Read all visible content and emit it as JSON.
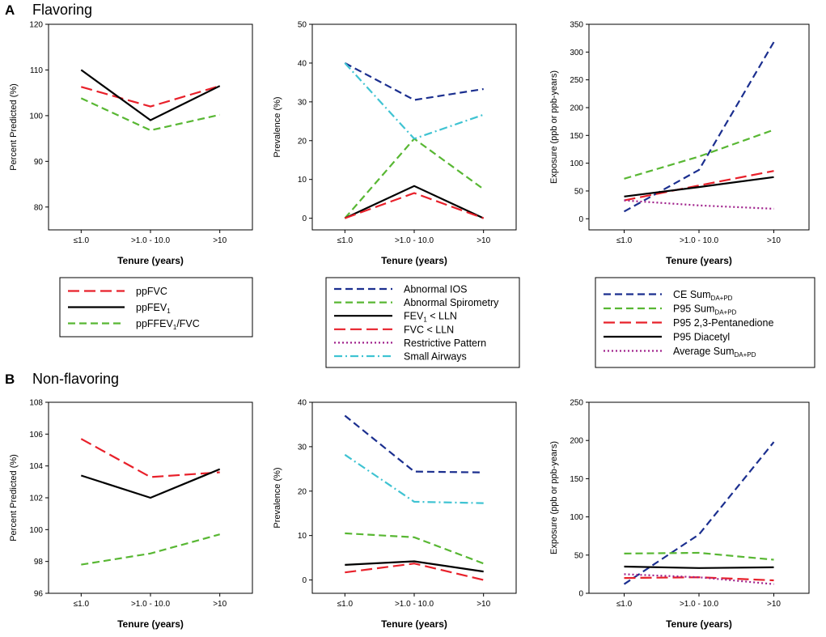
{
  "sections": {
    "A": {
      "letter": "A",
      "title": "Flavoring"
    },
    "B": {
      "letter": "B",
      "title": "Non-flavoring"
    }
  },
  "chart_data": [
    {
      "id": "A1",
      "type": "line",
      "categories": [
        "≤1.0",
        ">1.0 - 10.0",
        ">10"
      ],
      "xlabel": "Tenure (years)",
      "ylabel": "Percent Predicted (%)",
      "ylim": [
        75,
        120
      ],
      "yticks": [
        80,
        90,
        100,
        110,
        120
      ],
      "series": [
        {
          "key": "ppFVC",
          "values": [
            106.3,
            102.0,
            106.5
          ]
        },
        {
          "key": "ppFEV1",
          "values": [
            110.0,
            99.0,
            106.5
          ]
        },
        {
          "key": "ppFEV1FVC",
          "values": [
            103.8,
            96.8,
            100.2
          ]
        }
      ]
    },
    {
      "id": "A2",
      "type": "line",
      "categories": [
        "≤1.0",
        ">1.0 - 10.0",
        ">10"
      ],
      "xlabel": "Tenure (years)",
      "ylabel": "Prevalence (%)",
      "ylim": [
        -3,
        50
      ],
      "yticks": [
        0,
        10,
        20,
        30,
        40,
        50
      ],
      "series": [
        {
          "key": "abnIOS",
          "values": [
            40.0,
            30.5,
            33.3
          ]
        },
        {
          "key": "abnSpiro",
          "values": [
            0.0,
            20.5,
            7.5
          ]
        },
        {
          "key": "fev1lln",
          "values": [
            0.0,
            8.3,
            0.0
          ]
        },
        {
          "key": "fvclln",
          "values": [
            0.0,
            6.5,
            0.0
          ]
        },
        {
          "key": "smallAirways",
          "values": [
            40.0,
            20.5,
            26.7
          ]
        }
      ]
    },
    {
      "id": "A3",
      "type": "line",
      "categories": [
        "≤1.0",
        ">1.0 - 10.0",
        ">10"
      ],
      "xlabel": "Tenure (years)",
      "ylabel": "Exposure (ppb or ppb-years)",
      "ylim": [
        -20,
        350
      ],
      "yticks": [
        0,
        50,
        100,
        150,
        200,
        250,
        300,
        350
      ],
      "series": [
        {
          "key": "ceSum",
          "values": [
            13,
            88,
            318
          ]
        },
        {
          "key": "p95Sum",
          "values": [
            72,
            112,
            160
          ]
        },
        {
          "key": "p95Pent",
          "values": [
            33,
            60,
            86
          ]
        },
        {
          "key": "p95Dia",
          "values": [
            40,
            57,
            75
          ]
        },
        {
          "key": "avgSum",
          "values": [
            33,
            24,
            18
          ]
        }
      ]
    },
    {
      "id": "B1",
      "type": "line",
      "categories": [
        "≤1.0",
        ">1.0 - 10.0",
        ">10"
      ],
      "xlabel": "Tenure (years)",
      "ylabel": "Percent Predicted (%)",
      "ylim": [
        96,
        108
      ],
      "yticks": [
        96,
        98,
        100,
        102,
        104,
        106,
        108
      ],
      "series": [
        {
          "key": "ppFVC",
          "values": [
            105.7,
            103.3,
            103.6
          ]
        },
        {
          "key": "ppFEV1",
          "values": [
            103.4,
            102.0,
            103.8
          ]
        },
        {
          "key": "ppFEV1FVC",
          "values": [
            97.8,
            98.5,
            99.7
          ]
        }
      ]
    },
    {
      "id": "B2",
      "type": "line",
      "categories": [
        "≤1.0",
        ">1.0 - 10.0",
        ">10"
      ],
      "xlabel": "Tenure (years)",
      "ylabel": "Prevalence (%)",
      "ylim": [
        -3,
        40
      ],
      "yticks": [
        0,
        10,
        20,
        30,
        40
      ],
      "series": [
        {
          "key": "abnIOS",
          "values": [
            37.0,
            24.4,
            24.2
          ]
        },
        {
          "key": "abnSpiro",
          "values": [
            10.5,
            9.6,
            3.7
          ]
        },
        {
          "key": "fev1lln",
          "values": [
            3.4,
            4.2,
            1.9
          ]
        },
        {
          "key": "fvclln",
          "values": [
            1.7,
            3.7,
            0.0
          ]
        },
        {
          "key": "smallAirways",
          "values": [
            28.2,
            17.6,
            17.3
          ]
        }
      ]
    },
    {
      "id": "B3",
      "type": "line",
      "categories": [
        "≤1.0",
        ">1.0 - 10.0",
        ">10"
      ],
      "xlabel": "Tenure (years)",
      "ylabel": "Exposure (ppb or ppb-years)",
      "ylim": [
        0,
        250
      ],
      "yticks": [
        0,
        50,
        100,
        150,
        200,
        250
      ],
      "series": [
        {
          "key": "ceSum",
          "values": [
            12,
            77,
            198
          ]
        },
        {
          "key": "p95Sum",
          "values": [
            52,
            53,
            44
          ]
        },
        {
          "key": "p95Pent",
          "values": [
            20,
            21,
            17
          ]
        },
        {
          "key": "p95Dia",
          "values": [
            35,
            33,
            34
          ]
        },
        {
          "key": "avgSum",
          "values": [
            25,
            21,
            12
          ]
        }
      ]
    }
  ],
  "styles": {
    "ppFVC": {
      "color": "#e8202a",
      "dash": "long"
    },
    "ppFEV1": {
      "color": "#000000",
      "dash": "solid"
    },
    "ppFEV1FVC": {
      "color": "#58b733",
      "dash": "medium"
    },
    "abnIOS": {
      "color": "#1b2f8f",
      "dash": "medium"
    },
    "abnSpiro": {
      "color": "#58b733",
      "dash": "medium"
    },
    "fev1lln": {
      "color": "#000000",
      "dash": "solid"
    },
    "fvclln": {
      "color": "#e8202a",
      "dash": "long"
    },
    "restrictive": {
      "color": "#a0228c",
      "dash": "dot"
    },
    "smallAirways": {
      "color": "#3fc3d2",
      "dash": "dashdot"
    },
    "ceSum": {
      "color": "#1b2f8f",
      "dash": "medium"
    },
    "p95Sum": {
      "color": "#58b733",
      "dash": "medium"
    },
    "p95Pent": {
      "color": "#e8202a",
      "dash": "long"
    },
    "p95Dia": {
      "color": "#000000",
      "dash": "solid"
    },
    "avgSum": {
      "color": "#a0228c",
      "dash": "dot"
    }
  },
  "legends": {
    "L1": [
      {
        "key": "ppFVC",
        "label": "ppFVC"
      },
      {
        "key": "ppFEV1",
        "label": "ppFEV",
        "sub": "1"
      },
      {
        "key": "ppFEV1FVC",
        "label": "ppFFEV",
        "sub": "1",
        "suffix": "/FVC"
      }
    ],
    "L2": [
      {
        "key": "abnIOS",
        "label": "Abnormal IOS"
      },
      {
        "key": "abnSpiro",
        "label": "Abnormal Spirometry"
      },
      {
        "key": "fev1lln",
        "label": "FEV",
        "sub": "1",
        "suffix": " < LLN"
      },
      {
        "key": "fvclln",
        "label": "FVC < LLN"
      },
      {
        "key": "restrictive",
        "label": "Restrictive Pattern"
      },
      {
        "key": "smallAirways",
        "label": "Small Airways"
      }
    ],
    "L3": [
      {
        "key": "ceSum",
        "label": "CE Sum",
        "sub": "DA+PD"
      },
      {
        "key": "p95Sum",
        "label": "P95 Sum",
        "sub": "DA+PD"
      },
      {
        "key": "p95Pent",
        "label": "P95 2,3-Pentanedione"
      },
      {
        "key": "p95Dia",
        "label": "P95 Diacetyl"
      },
      {
        "key": "avgSum",
        "label": "Average Sum",
        "sub": "DA+PD"
      }
    ]
  }
}
